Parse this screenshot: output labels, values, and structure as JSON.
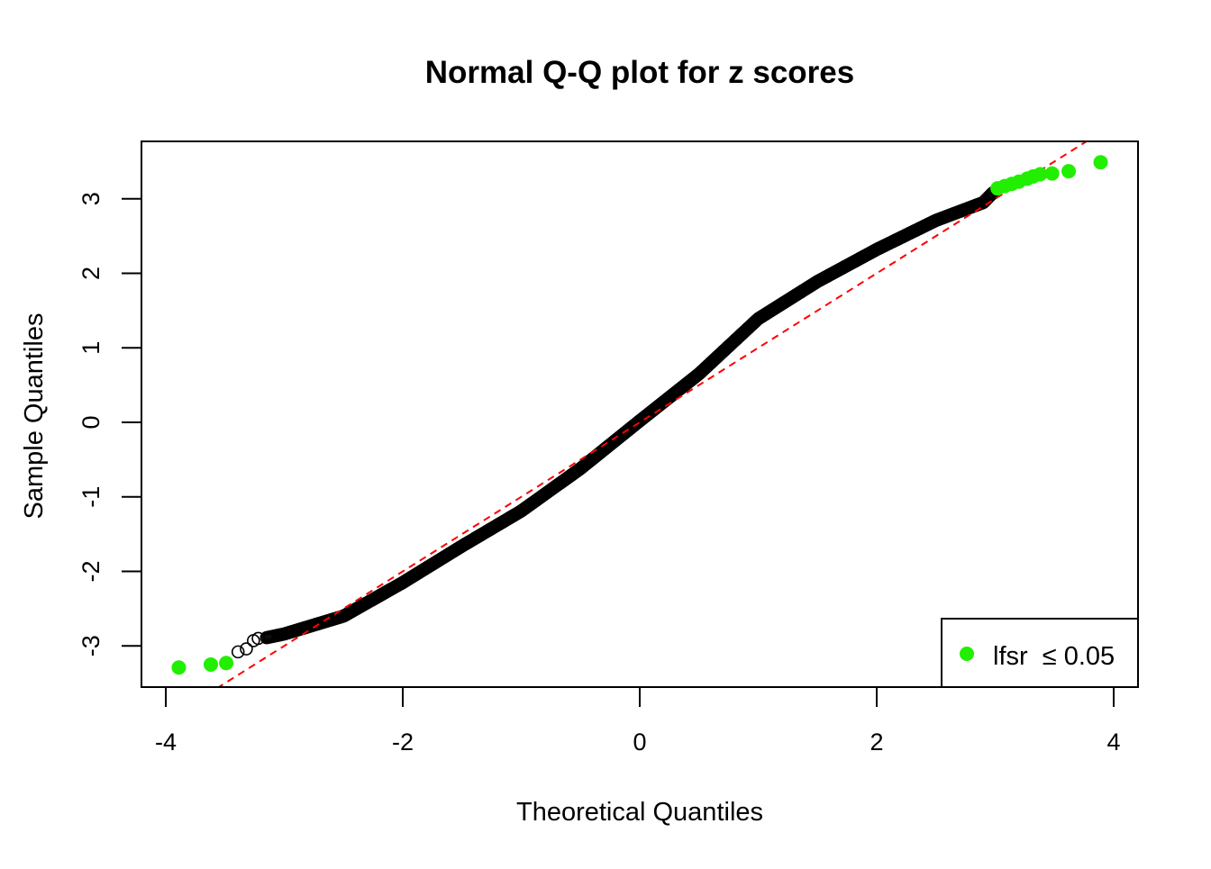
{
  "chart_data": {
    "type": "scatter",
    "title": "Normal Q-Q plot for z scores",
    "xlabel": "Theoretical Quantiles",
    "ylabel": "Sample Quantiles",
    "xlim": [
      -4.2,
      4.2
    ],
    "ylim": [
      -3.55,
      3.77
    ],
    "xticks": [
      -4,
      -2,
      0,
      2,
      4
    ],
    "yticks": [
      -3,
      -2,
      -1,
      0,
      1,
      2,
      3
    ],
    "grid": false,
    "legend": {
      "placement": "bottom-right",
      "label": "lfsr  ≤ 0.05",
      "marker": "filled-circle",
      "color": "#22ee00"
    },
    "reference_line": {
      "style": "dashed",
      "color": "#ff0000",
      "slope": 1.0,
      "intercept": 0.0
    },
    "series": [
      {
        "marker": "open-circle",
        "color": "#000000",
        "points": [
          [
            -3.39,
            -3.08
          ],
          [
            -3.32,
            -3.04
          ],
          [
            -3.26,
            -2.93
          ],
          [
            -3.22,
            -2.9
          ],
          [
            -3.15,
            -2.89
          ],
          [
            -3.0,
            -2.84
          ],
          [
            -2.5,
            -2.6
          ],
          [
            -2.0,
            -2.15
          ],
          [
            -1.5,
            -1.66
          ],
          [
            -1.0,
            -1.19
          ],
          [
            -0.5,
            -0.62
          ],
          [
            0.0,
            0.02
          ],
          [
            0.5,
            0.65
          ],
          [
            1.0,
            1.39
          ],
          [
            1.5,
            1.89
          ],
          [
            2.0,
            2.32
          ],
          [
            2.5,
            2.71
          ],
          [
            2.9,
            2.95
          ],
          [
            2.98,
            3.08
          ]
        ]
      },
      {
        "name": "lfsr  ≤ 0.05",
        "marker": "filled-circle",
        "color": "#22ee00",
        "points": [
          [
            -3.89,
            -3.29
          ],
          [
            -3.62,
            -3.25
          ],
          [
            -3.49,
            -3.23
          ],
          [
            3.02,
            3.14
          ],
          [
            3.08,
            3.17
          ],
          [
            3.14,
            3.2
          ],
          [
            3.2,
            3.23
          ],
          [
            3.27,
            3.27
          ],
          [
            3.32,
            3.3
          ],
          [
            3.38,
            3.33
          ],
          [
            3.48,
            3.34
          ],
          [
            3.62,
            3.37
          ],
          [
            3.89,
            3.49
          ]
        ]
      }
    ]
  }
}
